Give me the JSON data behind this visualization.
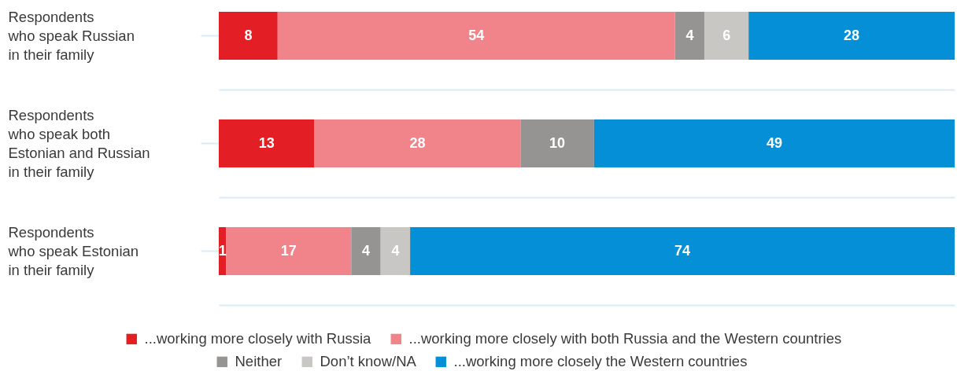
{
  "chart_data": {
    "type": "bar",
    "orientation": "horizontal",
    "stacked": true,
    "categories": [
      "Respondents\nwho speak Russian\nin their family",
      "Respondents\nwho speak both\nEstonian and Russian\nin their family",
      "Respondents\nwho speak Estonian\nin their family"
    ],
    "series": [
      {
        "name": "...working more closely with Russia",
        "color": "#e31e24",
        "values": [
          8,
          13,
          1
        ]
      },
      {
        "name": "...working more closely with both Russia and the Western countries",
        "color": "#f0848a",
        "values": [
          54,
          28,
          17
        ]
      },
      {
        "name": "Neither",
        "color": "#959492",
        "values": [
          4,
          10,
          4
        ]
      },
      {
        "name": "Don’t know/NA",
        "color": "#c8c7c3",
        "values": [
          6,
          null,
          4
        ]
      },
      {
        "name": "...working more closely the Western countries",
        "color": "#058fd6",
        "values": [
          28,
          49,
          74
        ]
      }
    ],
    "data_labels": true,
    "legend": "bottom",
    "grid": "y",
    "tick_labels": "y"
  }
}
